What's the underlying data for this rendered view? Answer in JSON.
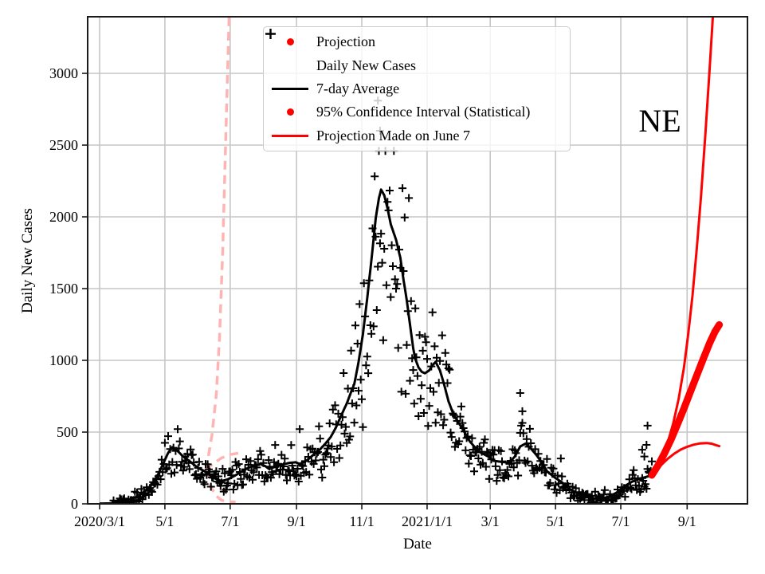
{
  "figure": {
    "annotation": "NE",
    "x_label": "Date",
    "y_label": "Daily New Cases"
  },
  "legend": {
    "items": [
      {
        "label": "Projection",
        "marker": "red-dot"
      },
      {
        "label": "Daily New Cases",
        "marker": "black-plus"
      },
      {
        "label": "7-day Average",
        "marker": "black-line"
      },
      {
        "label": "95% Confidence Interval (Statistical)",
        "marker": "red-dot"
      },
      {
        "label": "Projection Made on June 7",
        "marker": "red-line"
      }
    ]
  },
  "colors": {
    "red": "#ff0000",
    "pink": "#ffb4b4",
    "grid": "#c6c6c6",
    "axis": "#1a1a1a",
    "scatter": "#000000",
    "avg_line": "#000000"
  },
  "chart_data": {
    "type": "scatter+line",
    "title": "",
    "xlabel": "Date",
    "ylabel": "Daily New Cases",
    "ylim": [
      0,
      3400
    ],
    "y_ticks": [
      0,
      500,
      1000,
      1500,
      2000,
      2500,
      3000
    ],
    "x_ticks": [
      {
        "day": 0,
        "label": "2020/3/1"
      },
      {
        "day": 61,
        "label": "5/1"
      },
      {
        "day": 122,
        "label": "7/1"
      },
      {
        "day": 184,
        "label": "9/1"
      },
      {
        "day": 245,
        "label": "11/1"
      },
      {
        "day": 306,
        "label": "2021/1/1"
      },
      {
        "day": 365,
        "label": "3/1"
      },
      {
        "day": 426,
        "label": "5/1"
      },
      {
        "day": 487,
        "label": "7/1"
      },
      {
        "day": 549,
        "label": "9/1"
      }
    ],
    "grid": true,
    "legend_position": "upper-center-left",
    "avg_7day": [
      [
        0,
        2
      ],
      [
        10,
        3
      ],
      [
        16,
        6
      ],
      [
        22,
        14
      ],
      [
        28,
        28
      ],
      [
        34,
        48
      ],
      [
        40,
        75
      ],
      [
        45,
        105
      ],
      [
        50,
        145
      ],
      [
        55,
        210
      ],
      [
        60,
        290
      ],
      [
        64,
        355
      ],
      [
        68,
        395
      ],
      [
        72,
        375
      ],
      [
        78,
        330
      ],
      [
        85,
        292
      ],
      [
        92,
        250
      ],
      [
        98,
        228
      ],
      [
        104,
        195
      ],
      [
        110,
        168
      ],
      [
        114,
        158
      ],
      [
        120,
        172
      ],
      [
        126,
        195
      ],
      [
        132,
        222
      ],
      [
        138,
        248
      ],
      [
        144,
        265
      ],
      [
        150,
        278
      ],
      [
        155,
        262
      ],
      [
        158,
        245
      ],
      [
        163,
        255
      ],
      [
        170,
        272
      ],
      [
        177,
        285
      ],
      [
        183,
        290
      ],
      [
        187,
        278
      ],
      [
        192,
        295
      ],
      [
        195,
        311
      ],
      [
        201,
        350
      ],
      [
        206,
        380
      ],
      [
        211,
        420
      ],
      [
        216,
        466
      ],
      [
        221,
        535
      ],
      [
        226,
        620
      ],
      [
        231,
        700
      ],
      [
        235,
        780
      ],
      [
        238,
        835
      ],
      [
        242,
        990
      ],
      [
        246,
        1180
      ],
      [
        250,
        1430
      ],
      [
        254,
        1700
      ],
      [
        258,
        1990
      ],
      [
        261,
        2130
      ],
      [
        263,
        2190
      ],
      [
        266,
        2150
      ],
      [
        269,
        2060
      ],
      [
        272,
        1950
      ],
      [
        277,
        1840
      ],
      [
        281,
        1715
      ],
      [
        284,
        1560
      ],
      [
        287,
        1420
      ],
      [
        290,
        1250
      ],
      [
        293,
        1085
      ],
      [
        295,
        1010
      ],
      [
        298,
        950
      ],
      [
        301,
        920
      ],
      [
        304,
        910
      ],
      [
        308,
        930
      ],
      [
        311,
        965
      ],
      [
        314,
        990
      ],
      [
        318,
        930
      ],
      [
        322,
        830
      ],
      [
        326,
        715
      ],
      [
        331,
        617
      ],
      [
        339,
        524
      ],
      [
        346,
        434
      ],
      [
        354,
        366
      ],
      [
        363,
        330
      ],
      [
        368,
        300
      ],
      [
        376,
        292
      ],
      [
        383,
        287
      ],
      [
        388,
        330
      ],
      [
        393,
        400
      ],
      [
        398,
        420
      ],
      [
        403,
        385
      ],
      [
        408,
        342
      ],
      [
        413,
        290
      ],
      [
        418,
        228
      ],
      [
        425,
        185
      ],
      [
        432,
        150
      ],
      [
        440,
        100
      ],
      [
        447,
        72
      ],
      [
        454,
        48
      ],
      [
        461,
        38
      ],
      [
        468,
        36
      ],
      [
        475,
        45
      ],
      [
        483,
        78
      ],
      [
        490,
        120
      ],
      [
        497,
        152
      ],
      [
        504,
        175
      ],
      [
        510,
        186
      ],
      [
        516,
        200
      ]
    ],
    "projection": [
      [
        516,
        200
      ],
      [
        522,
        270
      ],
      [
        528,
        355
      ],
      [
        534,
        450
      ],
      [
        540,
        555
      ],
      [
        546,
        665
      ],
      [
        552,
        780
      ],
      [
        558,
        895
      ],
      [
        564,
        1010
      ],
      [
        570,
        1120
      ],
      [
        575,
        1200
      ],
      [
        579,
        1248
      ]
    ],
    "ci_upper": [
      [
        516,
        200
      ],
      [
        521,
        255
      ],
      [
        526,
        330
      ],
      [
        531,
        430
      ],
      [
        536,
        560
      ],
      [
        541,
        730
      ],
      [
        546,
        950
      ],
      [
        550,
        1180
      ],
      [
        554,
        1450
      ],
      [
        558,
        1780
      ],
      [
        562,
        2150
      ],
      [
        566,
        2570
      ],
      [
        570,
        3030
      ],
      [
        573,
        3390
      ]
    ],
    "ci_lower": [
      [
        516,
        200
      ],
      [
        521,
        240
      ],
      [
        526,
        280
      ],
      [
        531,
        315
      ],
      [
        537,
        350
      ],
      [
        543,
        378
      ],
      [
        549,
        398
      ],
      [
        555,
        412
      ],
      [
        561,
        421
      ],
      [
        567,
        424
      ],
      [
        572,
        419
      ],
      [
        576,
        409
      ],
      [
        579,
        402
      ]
    ],
    "prior_projection_segments": [
      [
        [
          121,
          3390
        ],
        [
          119,
          2850
        ],
        [
          117,
          2300
        ],
        [
          115,
          1750
        ],
        [
          112,
          1150
        ],
        [
          109,
          760
        ],
        [
          105,
          480
        ],
        [
          101,
          300
        ],
        [
          99,
          235
        ]
      ],
      [
        [
          99,
          235
        ],
        [
          106,
          280
        ],
        [
          114,
          320
        ],
        [
          123,
          345
        ],
        [
          131,
          355
        ]
      ],
      [
        [
          99,
          235
        ],
        [
          102,
          170
        ],
        [
          105,
          105
        ],
        [
          109,
          55
        ],
        [
          114,
          25
        ],
        [
          120,
          15
        ],
        [
          127,
          13
        ]
      ]
    ],
    "daily_outliers": [
      [
        260,
        2810
      ],
      [
        262,
        2600
      ],
      [
        393,
        772
      ],
      [
        395,
        645
      ],
      [
        507,
        377
      ],
      [
        509,
        330
      ],
      [
        511,
        411
      ],
      [
        512,
        545
      ]
    ],
    "daily_scatter_spec": {
      "seed": 987654321,
      "day_start": 12,
      "day_end": 516,
      "rel_noise": 0.26,
      "abs_noise": 32,
      "weekend_factor": 0.8,
      "value_cap": 2460
    }
  }
}
